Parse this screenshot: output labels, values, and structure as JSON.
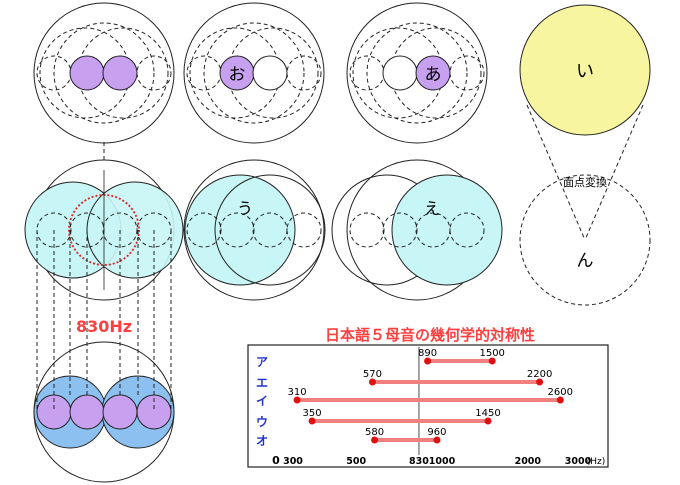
{
  "diagram": {
    "vowels_top": {
      "o": "お",
      "a": "あ",
      "i": "い"
    },
    "vowels_mid": {
      "u": "う",
      "e": "え"
    },
    "n_label": "ん",
    "transform_label": "面点変換",
    "freq_label": "830Hz",
    "colors": {
      "purple": "#c8a0f0",
      "cyan": "#c8f5f5",
      "blue": "#8cc0f0",
      "yellow": "#f8f5a0",
      "red_text": "#ff4040",
      "bar": "#f08080"
    }
  },
  "chart_data": {
    "type": "bar",
    "title": "日本語５母音の幾何学的対称性",
    "categories": [
      "ア",
      "エ",
      "イ",
      "ウ",
      "オ"
    ],
    "series": [
      {
        "values": [
          [
            890,
            1500
          ],
          [
            570,
            2200
          ],
          [
            310,
            2600
          ],
          [
            350,
            1450
          ],
          [
            580,
            960
          ]
        ]
      }
    ],
    "xlabel": "(Hz)",
    "x_ticks": [
      "0",
      "300",
      "500",
      "830",
      "1000",
      "2000",
      "3000"
    ],
    "x_scale": "log",
    "reference_line": 830,
    "grid": false
  }
}
